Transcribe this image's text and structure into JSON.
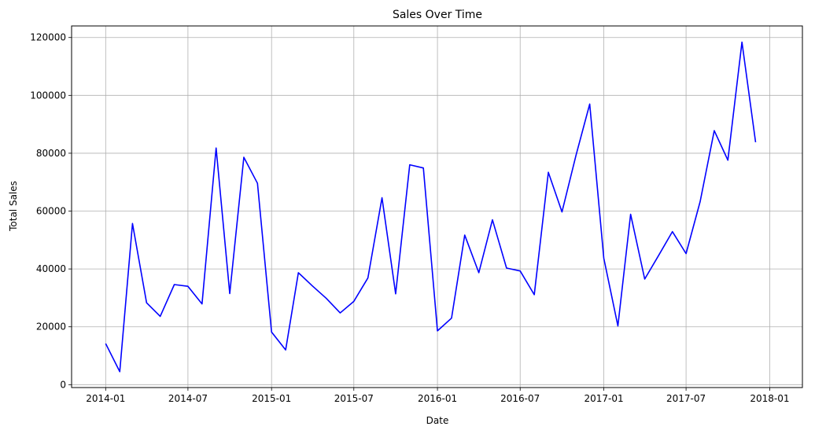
{
  "chart_data": {
    "type": "line",
    "title": "Sales Over Time",
    "xlabel": "Date",
    "ylabel": "Total Sales",
    "grid": true,
    "xlim": [
      "2013-10-18",
      "2018-03-14"
    ],
    "ylim": [
      -1000,
      124000
    ],
    "x_ticks": [
      "2014-01",
      "2014-07",
      "2015-01",
      "2015-07",
      "2016-01",
      "2016-07",
      "2017-01",
      "2017-07",
      "2018-01"
    ],
    "y_ticks": [
      "0",
      "20000",
      "40000",
      "60000",
      "80000",
      "100000",
      "120000"
    ],
    "series": [
      {
        "color": "#0000ff",
        "x": [
          "2014-01-01",
          "2014-02-01",
          "2014-03-01",
          "2014-04-01",
          "2014-05-01",
          "2014-06-01",
          "2014-07-01",
          "2014-08-01",
          "2014-09-01",
          "2014-10-01",
          "2014-11-01",
          "2014-12-01",
          "2015-01-01",
          "2015-02-01",
          "2015-03-01",
          "2015-04-01",
          "2015-05-01",
          "2015-06-01",
          "2015-07-01",
          "2015-08-01",
          "2015-09-01",
          "2015-10-01",
          "2015-11-01",
          "2015-12-01",
          "2016-01-01",
          "2016-02-01",
          "2016-03-01",
          "2016-04-01",
          "2016-05-01",
          "2016-06-01",
          "2016-07-01",
          "2016-08-01",
          "2016-09-01",
          "2016-10-01",
          "2016-11-01",
          "2016-12-01",
          "2017-01-01",
          "2017-02-01",
          "2017-03-01",
          "2017-04-01",
          "2017-05-01",
          "2017-06-01",
          "2017-07-01",
          "2017-08-01",
          "2017-09-01",
          "2017-10-01",
          "2017-11-01",
          "2017-12-01"
        ],
        "values": [
          14200,
          4500,
          55700,
          28300,
          23600,
          34600,
          34000,
          27900,
          81800,
          31500,
          78600,
          69600,
          18200,
          12000,
          38700,
          34100,
          29900,
          24800,
          28800,
          36900,
          64600,
          31400,
          76000,
          74900,
          18600,
          23000,
          51700,
          38700,
          57000,
          40300,
          39300,
          31100,
          73400,
          59700,
          79400,
          97000,
          43700,
          20300,
          58900,
          36500,
          44500,
          52900,
          45300,
          63300,
          87800,
          77600,
          118400,
          83800
        ]
      }
    ]
  }
}
